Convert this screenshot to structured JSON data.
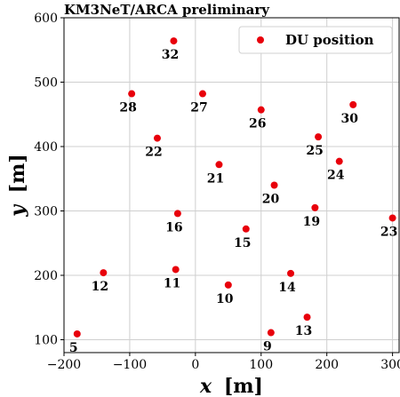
{
  "chart_data": {
    "type": "scatter",
    "title": "KM3NeT/ARCA preliminary",
    "xlabel_var": "x",
    "xlabel_unit": "[m]",
    "ylabel_var": "y",
    "ylabel_unit": "[m]",
    "xlim": [
      -200,
      310
    ],
    "ylim": [
      80,
      600
    ],
    "xticks": [
      -200,
      -100,
      0,
      100,
      200,
      300
    ],
    "yticks": [
      100,
      200,
      300,
      400,
      500,
      600
    ],
    "grid": true,
    "legend": {
      "placement": "top-right",
      "entries": [
        "DU position"
      ]
    },
    "marker_color": "#e8000b",
    "series": [
      {
        "name": "DU position",
        "points": [
          {
            "label": "5",
            "x": -180,
            "y": 109
          },
          {
            "label": "9",
            "x": 115,
            "y": 111
          },
          {
            "label": "10",
            "x": 50,
            "y": 185
          },
          {
            "label": "11",
            "x": -30,
            "y": 209
          },
          {
            "label": "12",
            "x": -140,
            "y": 204
          },
          {
            "label": "13",
            "x": 170,
            "y": 135
          },
          {
            "label": "14",
            "x": 145,
            "y": 203
          },
          {
            "label": "15",
            "x": 77,
            "y": 272
          },
          {
            "label": "16",
            "x": -27,
            "y": 296
          },
          {
            "label": "19",
            "x": 182,
            "y": 305
          },
          {
            "label": "20",
            "x": 120,
            "y": 340
          },
          {
            "label": "21",
            "x": 36,
            "y": 372
          },
          {
            "label": "22",
            "x": -58,
            "y": 413
          },
          {
            "label": "23",
            "x": 300,
            "y": 289
          },
          {
            "label": "24",
            "x": 219,
            "y": 377
          },
          {
            "label": "25",
            "x": 187,
            "y": 415
          },
          {
            "label": "26",
            "x": 100,
            "y": 457
          },
          {
            "label": "27",
            "x": 11,
            "y": 482
          },
          {
            "label": "28",
            "x": -97,
            "y": 482
          },
          {
            "label": "30",
            "x": 240,
            "y": 465
          },
          {
            "label": "32",
            "x": -33,
            "y": 564
          }
        ]
      }
    ]
  }
}
